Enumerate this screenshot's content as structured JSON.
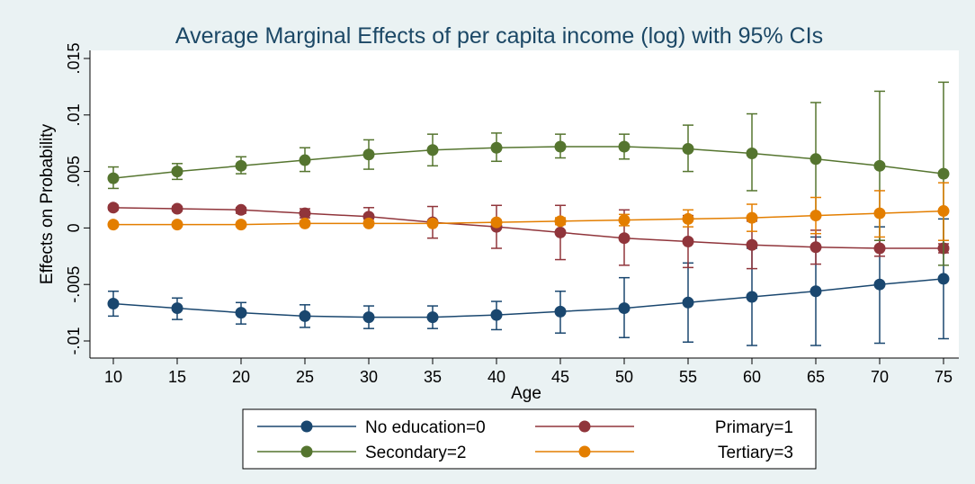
{
  "chart_data": {
    "type": "line",
    "title": "Average Marginal Effects of per capita income (log) with 95% CIs",
    "xlabel": "Age",
    "ylabel": "Effects on Probability",
    "x": [
      10,
      15,
      20,
      25,
      30,
      35,
      40,
      45,
      50,
      55,
      60,
      65,
      70,
      75
    ],
    "x_ticks": [
      "10",
      "15",
      "20",
      "25",
      "30",
      "35",
      "40",
      "45",
      "50",
      "55",
      "60",
      "65",
      "70",
      "75"
    ],
    "y_ticks": [
      {
        "value": -0.01,
        "label": "-.01"
      },
      {
        "value": -0.005,
        "label": "-.005"
      },
      {
        "value": 0,
        "label": "0"
      },
      {
        "value": 0.005,
        "label": ".005"
      },
      {
        "value": 0.01,
        "label": ".01"
      },
      {
        "value": 0.015,
        "label": ".015"
      }
    ],
    "xlim": [
      10,
      75
    ],
    "ylim": [
      -0.01,
      0.015
    ],
    "grid": false,
    "legend_position": "bottom",
    "series": [
      {
        "name": "No education=0",
        "color": "#1a476f",
        "values": [
          -0.0067,
          -0.0071,
          -0.0075,
          -0.0078,
          -0.0079,
          -0.0079,
          -0.0077,
          -0.0074,
          -0.0071,
          -0.0066,
          -0.0061,
          -0.0056,
          -0.005,
          -0.0045
        ],
        "ci_low": [
          -0.0078,
          -0.0081,
          -0.0085,
          -0.0088,
          -0.0089,
          -0.0089,
          -0.009,
          -0.0093,
          -0.0097,
          -0.0101,
          -0.0104,
          -0.0104,
          -0.0102,
          -0.0098
        ],
        "ci_high": [
          -0.0056,
          -0.0062,
          -0.0066,
          -0.0068,
          -0.0069,
          -0.0069,
          -0.0065,
          -0.0056,
          -0.0044,
          -0.0031,
          -0.0018,
          -0.0008,
          0.0001,
          0.0008
        ]
      },
      {
        "name": "Primary=1",
        "color": "#90353b",
        "values": [
          0.0018,
          0.0017,
          0.0016,
          0.0013,
          0.001,
          0.0005,
          0.0001,
          -0.0004,
          -0.0009,
          -0.0012,
          -0.0015,
          -0.0017,
          -0.0018,
          -0.0018
        ],
        "ci_low": [
          0.0016,
          0.0015,
          0.0013,
          0.0009,
          0.0003,
          -0.0009,
          -0.0018,
          -0.0028,
          -0.0033,
          -0.0035,
          -0.0036,
          -0.0032,
          -0.0025,
          -0.0022
        ],
        "ci_high": [
          0.002,
          0.0019,
          0.0018,
          0.0017,
          0.0018,
          0.0019,
          0.002,
          0.002,
          0.0016,
          0.0011,
          0.0006,
          -0.0002,
          -0.0011,
          -0.0014
        ]
      },
      {
        "name": "Secondary=2",
        "color": "#55752f",
        "values": [
          0.0044,
          0.005,
          0.0055,
          0.006,
          0.0065,
          0.0069,
          0.0071,
          0.0072,
          0.0072,
          0.007,
          0.0066,
          0.0061,
          0.0055,
          0.0048
        ],
        "ci_low": [
          0.0035,
          0.0043,
          0.0048,
          0.005,
          0.0052,
          0.0055,
          0.0059,
          0.0062,
          0.0061,
          0.005,
          0.0033,
          0.0011,
          -0.0011,
          -0.0033
        ],
        "ci_high": [
          0.0054,
          0.0057,
          0.0063,
          0.0071,
          0.0078,
          0.0083,
          0.0084,
          0.0083,
          0.0083,
          0.0091,
          0.0101,
          0.0111,
          0.0121,
          0.0129
        ]
      },
      {
        "name": "Tertiary=3",
        "color": "#e37e00",
        "values": [
          0.0003,
          0.0003,
          0.0003,
          0.0004,
          0.0004,
          0.0004,
          0.0005,
          0.0006,
          0.0007,
          0.0008,
          0.0009,
          0.0011,
          0.0013,
          0.0015
        ],
        "ci_low": [
          0.0003,
          0.0003,
          0.0003,
          0.0003,
          0.0003,
          0.0003,
          0.0003,
          0.0003,
          0.0002,
          0.0001,
          -0.0003,
          -0.0005,
          -0.0008,
          -0.0011
        ],
        "ci_high": [
          0.0004,
          0.0004,
          0.0004,
          0.0005,
          0.0005,
          0.0006,
          0.0007,
          0.0009,
          0.0012,
          0.0016,
          0.0021,
          0.0027,
          0.0033,
          0.004
        ]
      }
    ]
  }
}
